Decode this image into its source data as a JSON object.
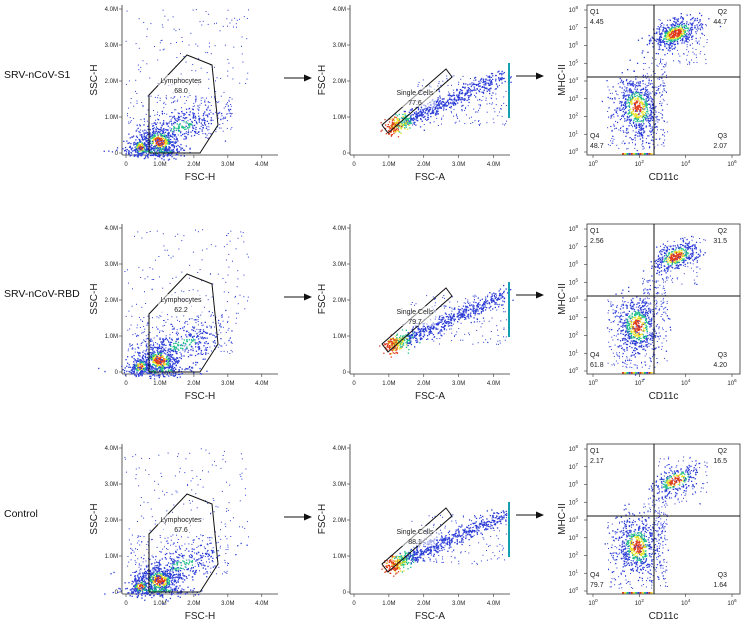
{
  "chart_data": [
    {
      "type": "scatter",
      "sample": "SRV-nCoV-S1",
      "panels": [
        {
          "kind": "lymph",
          "xlabel": "FSC-H",
          "ylabel": "SSC-H",
          "xticks": [
            "0",
            "1.0M",
            "2.0M",
            "3.0M",
            "4.0M"
          ],
          "yticks": [
            "0",
            "1.0M",
            "2.0M",
            "3.0M",
            "4.0M"
          ],
          "gate": {
            "name": "Lymphocytes",
            "value": "68.0"
          }
        },
        {
          "kind": "single",
          "xlabel": "FSC-A",
          "ylabel": "FSC-H",
          "xticks": [
            "0",
            "1.0M",
            "2.0M",
            "3.0M",
            "4.0M"
          ],
          "yticks": [
            "0",
            "1.0M",
            "2.0M",
            "3.0M",
            "4.0M"
          ],
          "gate": {
            "name": "Single Cells",
            "value": "77.6"
          }
        },
        {
          "kind": "quad",
          "xlabel": "CD11c",
          "ylabel": "MHC-II",
          "xexp": [
            "0",
            "2",
            "4",
            "6"
          ],
          "yexp": [
            "0",
            "1",
            "2",
            "3",
            "4",
            "5",
            "6",
            "7",
            "8"
          ],
          "quadrants": {
            "Q1": "4.45",
            "Q2": "44.7",
            "Q3": "2.07",
            "Q4": "48.7"
          }
        }
      ]
    },
    {
      "type": "scatter",
      "sample": "SRV-nCoV-RBD",
      "panels": [
        {
          "kind": "lymph",
          "xlabel": "FSC-H",
          "ylabel": "SSC-H",
          "xticks": [
            "0",
            "1.0M",
            "2.0M",
            "3.0M",
            "4.0M"
          ],
          "yticks": [
            "0",
            "1.0M",
            "2.0M",
            "3.0M",
            "4.0M"
          ],
          "gate": {
            "name": "Lymphocytes",
            "value": "62.2"
          }
        },
        {
          "kind": "single",
          "xlabel": "FSC-A",
          "ylabel": "FSC-H",
          "xticks": [
            "0",
            "1.0M",
            "2.0M",
            "3.0M",
            "4.0M"
          ],
          "yticks": [
            "0",
            "1.0M",
            "2.0M",
            "3.0M",
            "4.0M"
          ],
          "gate": {
            "name": "Single Cells",
            "value": "79.7"
          }
        },
        {
          "kind": "quad",
          "xlabel": "CD11c",
          "ylabel": "MHC-II",
          "xexp": [
            "0",
            "2",
            "4",
            "6"
          ],
          "yexp": [
            "0",
            "1",
            "2",
            "3",
            "4",
            "5",
            "6",
            "7",
            "8"
          ],
          "quadrants": {
            "Q1": "2.56",
            "Q2": "31.5",
            "Q3": "4.20",
            "Q4": "61.8"
          }
        }
      ]
    },
    {
      "type": "scatter",
      "sample": "Control",
      "panels": [
        {
          "kind": "lymph",
          "xlabel": "FSC-H",
          "ylabel": "SSC-H",
          "xticks": [
            "0",
            "1.0M",
            "2.0M",
            "3.0M",
            "4.0M"
          ],
          "yticks": [
            "0",
            "1.0M",
            "2.0M",
            "3.0M",
            "4.0M"
          ],
          "gate": {
            "name": "Lymphocytes",
            "value": "67.6"
          }
        },
        {
          "kind": "single",
          "xlabel": "FSC-A",
          "ylabel": "FSC-H",
          "xticks": [
            "0",
            "1.0M",
            "2.0M",
            "3.0M",
            "4.0M"
          ],
          "yticks": [
            "0",
            "1.0M",
            "2.0M",
            "3.0M",
            "4.0M"
          ],
          "gate": {
            "name": "Single Cells",
            "value": "88.1"
          }
        },
        {
          "kind": "quad",
          "xlabel": "CD11c",
          "ylabel": "MHC-II",
          "xexp": [
            "0",
            "2",
            "4",
            "6"
          ],
          "yexp": [
            "0",
            "1",
            "2",
            "3",
            "4",
            "5",
            "6",
            "7",
            "8"
          ],
          "quadrants": {
            "Q1": "2.17",
            "Q2": "16.5",
            "Q3": "1.64",
            "Q4": "79.7"
          }
        }
      ]
    }
  ],
  "colors": {
    "low": "#2b3cd6",
    "mid": "#22c08a",
    "high": "#e8e020",
    "peak": "#e03a1a",
    "gate": "#111111"
  }
}
